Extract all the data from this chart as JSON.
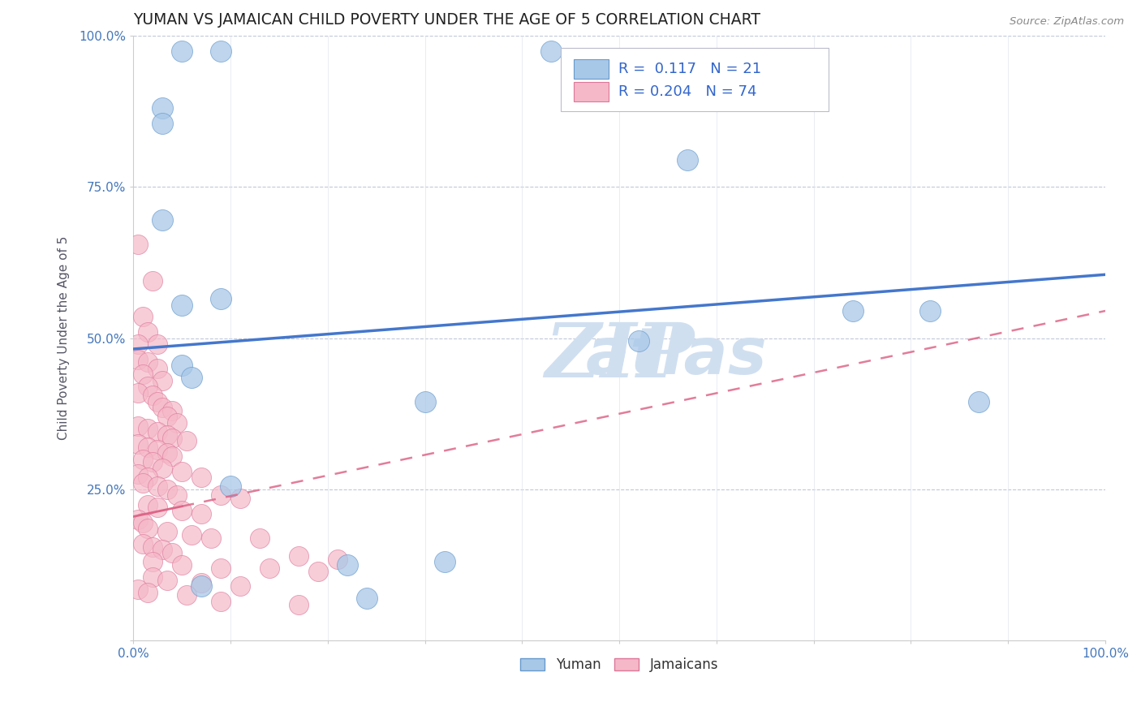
{
  "title": "YUMAN VS JAMAICAN CHILD POVERTY UNDER THE AGE OF 5 CORRELATION CHART",
  "source_text": "Source: ZipAtlas.com",
  "ylabel": "Child Poverty Under the Age of 5",
  "xlim": [
    0.0,
    1.0
  ],
  "ylim": [
    0.0,
    1.0
  ],
  "legend_R_yuman": "0.117",
  "legend_N_yuman": "21",
  "legend_R_jamaican": "0.204",
  "legend_N_jamaican": "74",
  "yuman_color": "#a8c8e8",
  "yuman_edge_color": "#6699cc",
  "jamaican_color": "#f5b8c8",
  "jamaican_edge_color": "#dd7799",
  "trendline_yuman_color": "#4477cc",
  "trendline_jamaican_color": "#dd6688",
  "watermark_color": "#d0dff0",
  "yuman_points": [
    [
      0.05,
      0.975
    ],
    [
      0.09,
      0.975
    ],
    [
      0.03,
      0.88
    ],
    [
      0.03,
      0.855
    ],
    [
      0.43,
      0.975
    ],
    [
      0.03,
      0.695
    ],
    [
      0.09,
      0.565
    ],
    [
      0.05,
      0.555
    ],
    [
      0.57,
      0.795
    ],
    [
      0.05,
      0.455
    ],
    [
      0.74,
      0.545
    ],
    [
      0.82,
      0.545
    ],
    [
      0.52,
      0.495
    ],
    [
      0.3,
      0.395
    ],
    [
      0.06,
      0.435
    ],
    [
      0.87,
      0.395
    ],
    [
      0.1,
      0.255
    ],
    [
      0.32,
      0.13
    ],
    [
      0.22,
      0.125
    ],
    [
      0.07,
      0.09
    ],
    [
      0.24,
      0.07
    ]
  ],
  "jamaican_points": [
    [
      0.005,
      0.655
    ],
    [
      0.02,
      0.595
    ],
    [
      0.01,
      0.535
    ],
    [
      0.015,
      0.51
    ],
    [
      0.005,
      0.49
    ],
    [
      0.025,
      0.49
    ],
    [
      0.005,
      0.465
    ],
    [
      0.015,
      0.46
    ],
    [
      0.025,
      0.45
    ],
    [
      0.01,
      0.44
    ],
    [
      0.03,
      0.43
    ],
    [
      0.015,
      0.42
    ],
    [
      0.005,
      0.41
    ],
    [
      0.02,
      0.405
    ],
    [
      0.025,
      0.395
    ],
    [
      0.03,
      0.385
    ],
    [
      0.04,
      0.38
    ],
    [
      0.035,
      0.37
    ],
    [
      0.045,
      0.36
    ],
    [
      0.005,
      0.355
    ],
    [
      0.015,
      0.35
    ],
    [
      0.025,
      0.345
    ],
    [
      0.035,
      0.34
    ],
    [
      0.04,
      0.335
    ],
    [
      0.055,
      0.33
    ],
    [
      0.005,
      0.325
    ],
    [
      0.015,
      0.32
    ],
    [
      0.025,
      0.315
    ],
    [
      0.035,
      0.31
    ],
    [
      0.04,
      0.305
    ],
    [
      0.01,
      0.3
    ],
    [
      0.02,
      0.295
    ],
    [
      0.03,
      0.285
    ],
    [
      0.05,
      0.28
    ],
    [
      0.005,
      0.275
    ],
    [
      0.015,
      0.27
    ],
    [
      0.07,
      0.27
    ],
    [
      0.01,
      0.26
    ],
    [
      0.025,
      0.255
    ],
    [
      0.035,
      0.25
    ],
    [
      0.045,
      0.24
    ],
    [
      0.09,
      0.24
    ],
    [
      0.11,
      0.235
    ],
    [
      0.015,
      0.225
    ],
    [
      0.025,
      0.22
    ],
    [
      0.05,
      0.215
    ],
    [
      0.07,
      0.21
    ],
    [
      0.005,
      0.2
    ],
    [
      0.01,
      0.195
    ],
    [
      0.015,
      0.185
    ],
    [
      0.035,
      0.18
    ],
    [
      0.06,
      0.175
    ],
    [
      0.08,
      0.17
    ],
    [
      0.13,
      0.17
    ],
    [
      0.01,
      0.16
    ],
    [
      0.02,
      0.155
    ],
    [
      0.03,
      0.15
    ],
    [
      0.04,
      0.145
    ],
    [
      0.17,
      0.14
    ],
    [
      0.21,
      0.135
    ],
    [
      0.02,
      0.13
    ],
    [
      0.05,
      0.125
    ],
    [
      0.09,
      0.12
    ],
    [
      0.14,
      0.12
    ],
    [
      0.19,
      0.115
    ],
    [
      0.02,
      0.105
    ],
    [
      0.035,
      0.1
    ],
    [
      0.07,
      0.095
    ],
    [
      0.11,
      0.09
    ],
    [
      0.005,
      0.085
    ],
    [
      0.015,
      0.08
    ],
    [
      0.055,
      0.075
    ],
    [
      0.09,
      0.065
    ],
    [
      0.17,
      0.06
    ]
  ],
  "yuman_trendline_x": [
    0.0,
    1.0
  ],
  "yuman_trendline_y": [
    0.482,
    0.605
  ],
  "jamaican_trendline_x": [
    0.0,
    1.0
  ],
  "jamaican_trendline_y": [
    0.205,
    0.545
  ]
}
